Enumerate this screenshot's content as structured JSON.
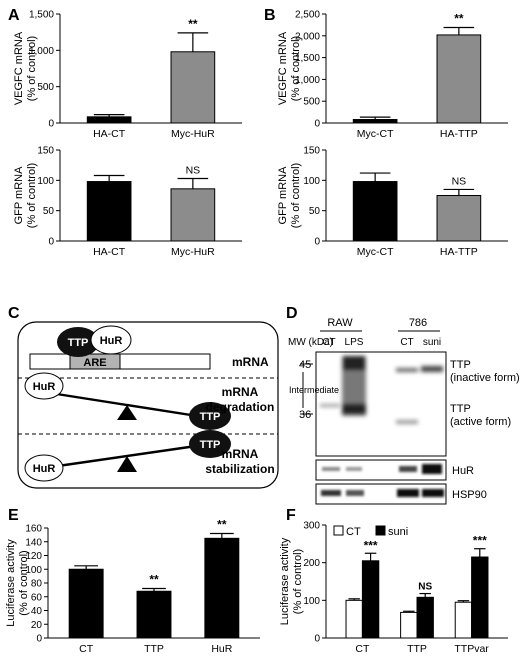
{
  "panels": {
    "A": {
      "letter": "A"
    },
    "B": {
      "letter": "B"
    },
    "C": {
      "letter": "C",
      "labels": {
        "ttp": "TTP",
        "hur": "HuR",
        "are": "ARE",
        "row1": "mRNA",
        "row2_l1": "mRNA",
        "row2_l2": "degradation",
        "row3_l1": "mRNA",
        "row3_l2": "stabilization"
      }
    },
    "D": {
      "letter": "D",
      "mw_label": "MW (kDa)",
      "group1": "RAW",
      "group2": "786",
      "lanes": [
        "CT",
        "LPS",
        "CT",
        "suni"
      ],
      "mw45": "45",
      "mw36": "36",
      "intermediate": "Intermediate",
      "ttp_inactive_l1": "TTP",
      "ttp_inactive_l2": "(inactive form)",
      "ttp_active_l1": "TTP",
      "ttp_active_l2": "(active form)",
      "hur": "HuR",
      "hsp90": "HSP90"
    },
    "E": {
      "letter": "E"
    },
    "F": {
      "letter": "F"
    }
  },
  "colors": {
    "black": "#000000",
    "gray": "#8c8c8c",
    "white": "#ffffff"
  },
  "chart_data": [
    {
      "id": "A1",
      "type": "bar",
      "categories": [
        "HA-CT",
        "Myc-HuR"
      ],
      "values": [
        85,
        980
      ],
      "errors": [
        30,
        260
      ],
      "ylabel_l1": "VEGFC mRNA",
      "ylabel_l2": "(% of control)",
      "ylim": [
        0,
        1500
      ],
      "yticks": [
        0,
        500,
        1000,
        1500
      ],
      "yticklabels": [
        "0",
        "500",
        "1,000",
        "1,500"
      ],
      "annotations": [
        "",
        "**"
      ],
      "bar_colors": [
        "#000000",
        "#8c8c8c"
      ]
    },
    {
      "id": "A2",
      "type": "bar",
      "categories": [
        "HA-CT",
        "Myc-HuR"
      ],
      "values": [
        98,
        86
      ],
      "errors": [
        10,
        17
      ],
      "ylabel_l1": "GFP mRNA",
      "ylabel_l2": "(% of control)",
      "ylim": [
        0,
        150
      ],
      "yticks": [
        0,
        50,
        100,
        150
      ],
      "yticklabels": [
        "0",
        "50",
        "100",
        "150"
      ],
      "annotations": [
        "",
        "NS"
      ],
      "bar_colors": [
        "#000000",
        "#8c8c8c"
      ]
    },
    {
      "id": "B1",
      "type": "bar",
      "categories": [
        "Myc-CT",
        "HA-TTP"
      ],
      "values": [
        80,
        2020
      ],
      "errors": [
        55,
        170
      ],
      "ylabel_l1": "VEGFC mRNA",
      "ylabel_l2": "(% of control)",
      "ylim": [
        0,
        2500
      ],
      "yticks": [
        0,
        500,
        1000,
        1500,
        2000,
        2500
      ],
      "yticklabels": [
        "0",
        "500",
        "1,000",
        "1,500",
        "2,000",
        "2,500"
      ],
      "annotations": [
        "",
        "**"
      ],
      "bar_colors": [
        "#000000",
        "#8c8c8c"
      ]
    },
    {
      "id": "B2",
      "type": "bar",
      "categories": [
        "Myc-CT",
        "HA-TTP"
      ],
      "values": [
        98,
        75
      ],
      "errors": [
        14,
        10
      ],
      "ylabel_l1": "GFP mRNA",
      "ylabel_l2": "(% of control)",
      "ylim": [
        0,
        150
      ],
      "yticks": [
        0,
        50,
        100,
        150
      ],
      "yticklabels": [
        "0",
        "50",
        "100",
        "150"
      ],
      "annotations": [
        "",
        "NS"
      ],
      "bar_colors": [
        "#000000",
        "#8c8c8c"
      ]
    },
    {
      "id": "E",
      "type": "bar",
      "categories": [
        "CT",
        "TTP",
        "HuR"
      ],
      "values": [
        100,
        68,
        145
      ],
      "errors": [
        5,
        4,
        7
      ],
      "ylabel_l1": "Luciferase activity",
      "ylabel_l2": "(% of control)",
      "ylim": [
        0,
        160
      ],
      "yticks": [
        0,
        20,
        40,
        60,
        80,
        100,
        120,
        140,
        160
      ],
      "yticklabels": [
        "0",
        "20",
        "40",
        "60",
        "80",
        "100",
        "120",
        "140",
        "160"
      ],
      "annotations": [
        "",
        "**",
        "**"
      ],
      "bar_colors": [
        "#000000",
        "#000000",
        "#000000"
      ]
    },
    {
      "id": "F",
      "type": "bar",
      "categories": [
        "CT",
        "TTP",
        "TTPvar"
      ],
      "series": [
        {
          "name": "CT",
          "values": [
            100,
            68,
            95
          ],
          "errors": [
            4,
            3,
            4
          ],
          "color": "#ffffff"
        },
        {
          "name": "suni",
          "values": [
            205,
            108,
            215
          ],
          "errors": [
            20,
            10,
            22
          ],
          "color": "#000000"
        }
      ],
      "ylabel_l1": "Luciferase activity",
      "ylabel_l2": "(% of control)",
      "ylim": [
        0,
        300
      ],
      "yticks": [
        0,
        100,
        200,
        300
      ],
      "yticklabels": [
        "0",
        "100",
        "200",
        "300"
      ],
      "annotations": [
        "***",
        "NS",
        "***"
      ],
      "legend": "top"
    }
  ]
}
